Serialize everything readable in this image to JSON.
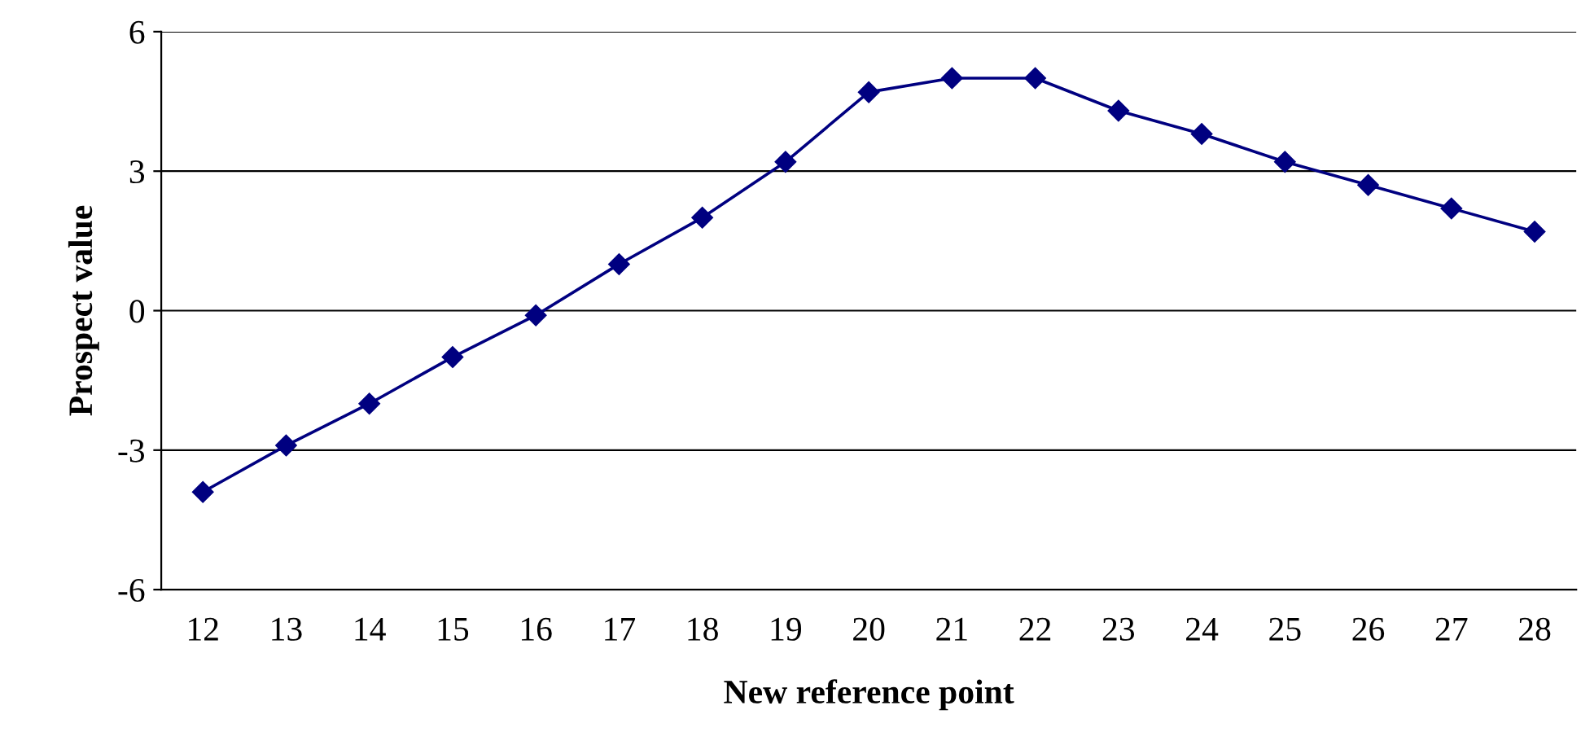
{
  "chart_data": {
    "type": "line",
    "xlabel": "New reference point",
    "ylabel": "Prospect value",
    "categories": [
      "12",
      "13",
      "14",
      "15",
      "16",
      "17",
      "18",
      "19",
      "20",
      "21",
      "22",
      "23",
      "24",
      "25",
      "26",
      "27",
      "28"
    ],
    "series": [
      {
        "color": "#000080",
        "values": [
          -3.9,
          -2.9,
          -2.0,
          -1.0,
          -0.1,
          1.0,
          2.0,
          3.2,
          4.7,
          5.0,
          5.0,
          4.3,
          3.8,
          3.2,
          2.7,
          2.2,
          1.7
        ]
      }
    ],
    "ylim": [
      -6,
      6
    ],
    "yticks": [
      {
        "value": -6,
        "label": "-6"
      },
      {
        "value": -3,
        "label": "-3"
      },
      0,
      3,
      6
    ],
    "grid": "y",
    "marker": "diamond",
    "line_style": "solid"
  }
}
